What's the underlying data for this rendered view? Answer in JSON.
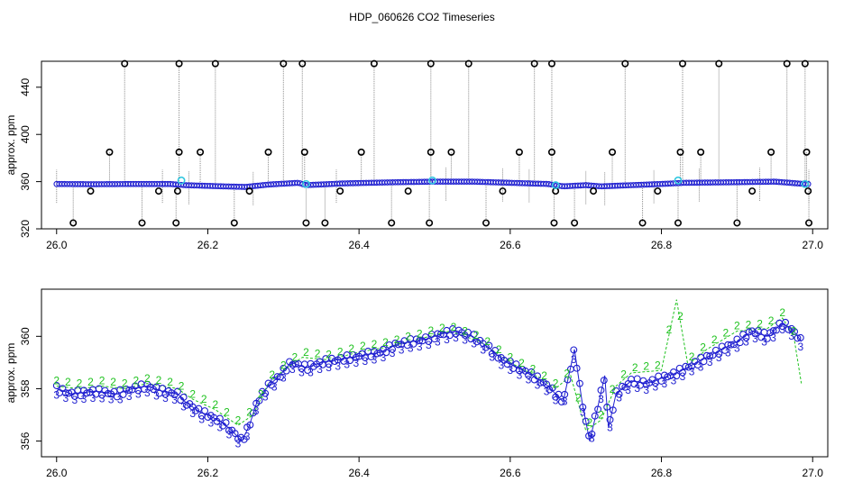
{
  "title": "HDP_060626  CO2 Timeseries",
  "colors": {
    "axis": "#000000",
    "vline": "#8c8c8c",
    "blue": "#1f1fd0",
    "cyan": "#33c8e0",
    "black_marker": "#000000",
    "green": "#1fc21f",
    "background": "#ffffff"
  },
  "chart_data": [
    {
      "type": "scatter",
      "title": "",
      "xlabel": "",
      "ylabel": "approx. ppm",
      "xlim": [
        25.98,
        27.02
      ],
      "ylim": [
        320,
        462
      ],
      "xticks": [
        "26.0",
        "26.2",
        "26.4",
        "26.6",
        "26.8",
        "27.0"
      ],
      "xtick_values": [
        26.0,
        26.2,
        26.4,
        26.6,
        26.8,
        27.0
      ],
      "yticks": [
        "320",
        "360",
        "400",
        "440"
      ],
      "ytick_values": [
        320,
        360,
        400,
        440
      ],
      "baseline": [
        [
          26.0,
          358
        ],
        [
          26.05,
          357.8
        ],
        [
          26.1,
          358
        ],
        [
          26.15,
          358
        ],
        [
          26.17,
          357
        ],
        [
          26.22,
          356
        ],
        [
          26.25,
          355.5
        ],
        [
          26.28,
          357.5
        ],
        [
          26.32,
          359
        ],
        [
          26.33,
          357
        ],
        [
          26.38,
          358.5
        ],
        [
          26.45,
          359.5
        ],
        [
          26.5,
          360
        ],
        [
          26.55,
          360
        ],
        [
          26.6,
          359
        ],
        [
          26.65,
          358
        ],
        [
          26.67,
          356
        ],
        [
          26.7,
          357
        ],
        [
          26.72,
          356
        ],
        [
          26.8,
          358
        ],
        [
          26.83,
          359
        ],
        [
          26.9,
          359.5
        ],
        [
          26.95,
          360
        ],
        [
          26.99,
          358
        ]
      ],
      "spikes_high": [
        26.09,
        26.162,
        26.21,
        26.3,
        26.325,
        26.42,
        26.495,
        26.545,
        26.632,
        26.655,
        26.752,
        26.828,
        26.876,
        26.966,
        26.99
      ],
      "spikes_mid": [
        26.07,
        26.162,
        26.19,
        26.28,
        26.328,
        26.403,
        26.495,
        26.522,
        26.612,
        26.655,
        26.735,
        26.825,
        26.852,
        26.945,
        26.992
      ],
      "spikes_low": [
        26.022,
        26.113,
        26.158,
        26.235,
        26.33,
        26.355,
        26.443,
        26.493,
        26.568,
        26.658,
        26.685,
        26.775,
        26.822,
        26.9,
        26.995
      ],
      "dots_352": [
        26.045,
        26.135,
        26.16,
        26.255,
        26.375,
        26.465,
        26.59,
        26.66,
        26.71,
        26.795,
        26.92,
        26.994
      ],
      "cyan_points": [
        [
          26.165,
          361
        ],
        [
          26.33,
          358
        ],
        [
          26.497,
          361
        ],
        [
          26.66,
          357
        ],
        [
          26.822,
          361
        ],
        [
          26.99,
          358
        ]
      ]
    },
    {
      "type": "line",
      "title": "",
      "xlabel": "",
      "ylabel": "approx. ppm",
      "xlim": [
        25.98,
        27.02
      ],
      "ylim": [
        355.4,
        361.8
      ],
      "xticks": [
        "26.0",
        "26.2",
        "26.4",
        "26.6",
        "26.8",
        "27.0"
      ],
      "xtick_values": [
        26.0,
        26.2,
        26.4,
        26.6,
        26.8,
        27.0
      ],
      "yticks": [
        "356",
        "358",
        "360"
      ],
      "ytick_values": [
        356,
        358,
        360
      ],
      "series": [
        {
          "marker_label": "3",
          "points": [
            [
              26.0,
              358.0
            ],
            [
              26.02,
              357.8
            ],
            [
              26.05,
              357.9
            ],
            [
              26.08,
              357.8
            ],
            [
              26.1,
              358.0
            ],
            [
              26.12,
              358.1
            ],
            [
              26.14,
              357.9
            ],
            [
              26.16,
              357.8
            ],
            [
              26.17,
              357.5
            ],
            [
              26.19,
              357.1
            ],
            [
              26.2,
              357.0
            ],
            [
              26.22,
              356.7
            ],
            [
              26.235,
              356.3
            ],
            [
              26.245,
              356.0
            ],
            [
              26.255,
              356.6
            ],
            [
              26.265,
              357.5
            ],
            [
              26.28,
              358.1
            ],
            [
              26.295,
              358.5
            ],
            [
              26.31,
              359.0
            ],
            [
              26.33,
              358.8
            ],
            [
              26.35,
              359.0
            ],
            [
              26.37,
              359.1
            ],
            [
              26.39,
              359.2
            ],
            [
              26.41,
              359.3
            ],
            [
              26.43,
              359.4
            ],
            [
              26.45,
              359.7
            ],
            [
              26.47,
              359.8
            ],
            [
              26.49,
              359.9
            ],
            [
              26.51,
              360.1
            ],
            [
              26.53,
              360.2
            ],
            [
              26.55,
              360.0
            ],
            [
              26.57,
              359.6
            ],
            [
              26.59,
              359.1
            ],
            [
              26.61,
              358.8
            ],
            [
              26.63,
              358.5
            ],
            [
              26.65,
              358.1
            ],
            [
              26.67,
              357.5
            ],
            [
              26.685,
              359.5
            ],
            [
              26.695,
              357.5
            ],
            [
              26.705,
              356.0
            ],
            [
              26.715,
              357.2
            ],
            [
              26.725,
              358.5
            ],
            [
              26.73,
              356.5
            ],
            [
              26.74,
              357.8
            ],
            [
              26.76,
              358.3
            ],
            [
              26.78,
              358.2
            ],
            [
              26.8,
              358.4
            ],
            [
              26.82,
              358.6
            ],
            [
              26.84,
              358.9
            ],
            [
              26.86,
              359.2
            ],
            [
              26.88,
              359.5
            ],
            [
              26.9,
              359.8
            ],
            [
              26.92,
              360.2
            ],
            [
              26.94,
              360.0
            ],
            [
              26.96,
              360.5
            ],
            [
              26.975,
              360.2
            ],
            [
              26.985,
              359.8
            ]
          ]
        },
        {
          "marker_label": "2",
          "points": [
            [
              26.0,
              358.1
            ],
            [
              26.03,
              358.0
            ],
            [
              26.06,
              358.1
            ],
            [
              26.09,
              358.0
            ],
            [
              26.12,
              358.2
            ],
            [
              26.16,
              358.0
            ],
            [
              26.18,
              357.6
            ],
            [
              26.21,
              357.2
            ],
            [
              26.24,
              356.6
            ],
            [
              26.26,
              357.0
            ],
            [
              26.28,
              358.2
            ],
            [
              26.3,
              358.7
            ],
            [
              26.325,
              359.2
            ],
            [
              26.36,
              359.1
            ],
            [
              26.4,
              359.4
            ],
            [
              26.44,
              359.6
            ],
            [
              26.48,
              359.9
            ],
            [
              26.52,
              360.2
            ],
            [
              26.56,
              359.8
            ],
            [
              26.6,
              359.0
            ],
            [
              26.64,
              358.4
            ],
            [
              26.66,
              358.0
            ],
            [
              26.68,
              358.5
            ],
            [
              26.7,
              356.4
            ],
            [
              26.72,
              356.8
            ],
            [
              26.74,
              358.1
            ],
            [
              26.76,
              358.6
            ],
            [
              26.8,
              358.7
            ],
            [
              26.82,
              361.4
            ],
            [
              26.835,
              358.9
            ],
            [
              26.86,
              359.5
            ],
            [
              26.9,
              360.2
            ],
            [
              26.94,
              360.3
            ],
            [
              26.96,
              360.7
            ],
            [
              26.975,
              360.0
            ],
            [
              26.985,
              358.2
            ]
          ]
        }
      ]
    }
  ]
}
